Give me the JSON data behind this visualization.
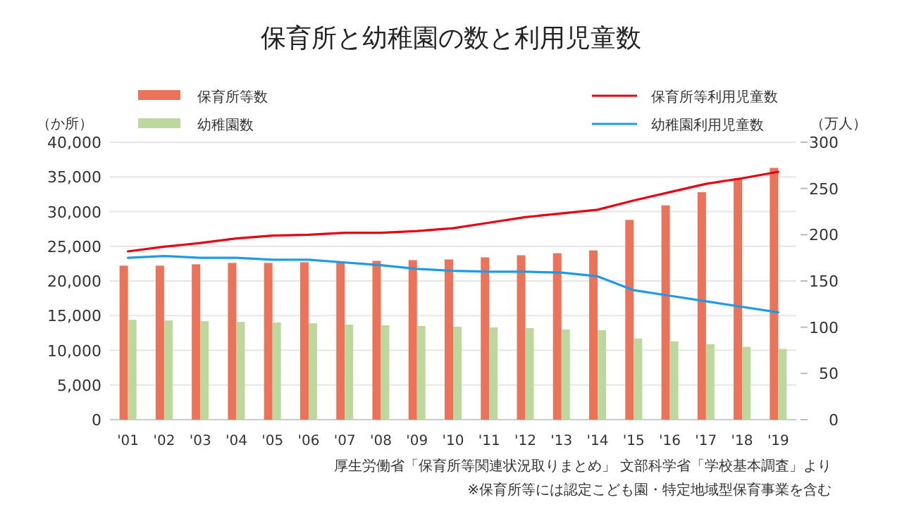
{
  "chart_data": {
    "type": "bar",
    "title": "保育所と幼稚園の数と利用児童数",
    "ylabel": "（か所）",
    "y2label": "（万人）",
    "categories": [
      "'01",
      "'02",
      "'03",
      "'04",
      "'05",
      "'06",
      "'07",
      "'08",
      "'09",
      "'10",
      "'11",
      "'12",
      "'13",
      "'14",
      "'15",
      "'16",
      "'17",
      "'18",
      "'19"
    ],
    "series": [
      {
        "name": "保育所等数",
        "color": "#eb735a",
        "values": [
          22200,
          22200,
          22400,
          22600,
          22600,
          22700,
          22800,
          22900,
          23000,
          23100,
          23400,
          23700,
          24000,
          24400,
          28800,
          30900,
          32800,
          34800,
          36300
        ]
      },
      {
        "name": "幼稚園数",
        "color": "#bcd89e",
        "values": [
          14400,
          14300,
          14200,
          14100,
          14000,
          13900,
          13700,
          13600,
          13500,
          13400,
          13300,
          13200,
          13000,
          12900,
          11700,
          11300,
          10900,
          10500,
          10200
        ]
      },
      {
        "name": "保育所等利用児童数",
        "type": "line",
        "axis": "y2",
        "color": "#e50012",
        "values": [
          182,
          187,
          191,
          196,
          199,
          200,
          202,
          202,
          204,
          207,
          213,
          219,
          223,
          227,
          237,
          246,
          255,
          261,
          268
        ]
      },
      {
        "name": "幼稚園利用児童数",
        "type": "line",
        "axis": "y2",
        "color": "#1e9be6",
        "values": [
          175,
          177,
          175,
          175,
          173,
          173,
          170,
          167,
          163,
          161,
          160,
          160,
          159,
          155,
          140,
          134,
          128,
          122,
          116
        ]
      }
    ],
    "ylim": [
      0,
      40000
    ],
    "yticks": [
      {
        "value": 0,
        "label": "0"
      },
      {
        "value": 5000,
        "label": "5,000"
      },
      {
        "value": 10000,
        "label": "10,000"
      },
      {
        "value": 15000,
        "label": "15,000"
      },
      {
        "value": 20000,
        "label": "20,000"
      },
      {
        "value": 25000,
        "label": "25,000"
      },
      {
        "value": 30000,
        "label": "30,000"
      },
      {
        "value": 35000,
        "label": "35,000"
      },
      {
        "value": 40000,
        "label": "40,000"
      }
    ],
    "y2lim": [
      0,
      300
    ],
    "y2ticks": [
      0,
      50,
      100,
      150,
      200,
      250,
      300
    ],
    "grid": "y",
    "legend": "top",
    "marker": "none",
    "line_style": "solid",
    "annotations": [
      "厚生労働省「保育所等関連状況取りまとめ」 文部科学省「学校基本調査」より",
      "※保育所等には認定こども園・特定地域型保育事業を含む"
    ]
  }
}
